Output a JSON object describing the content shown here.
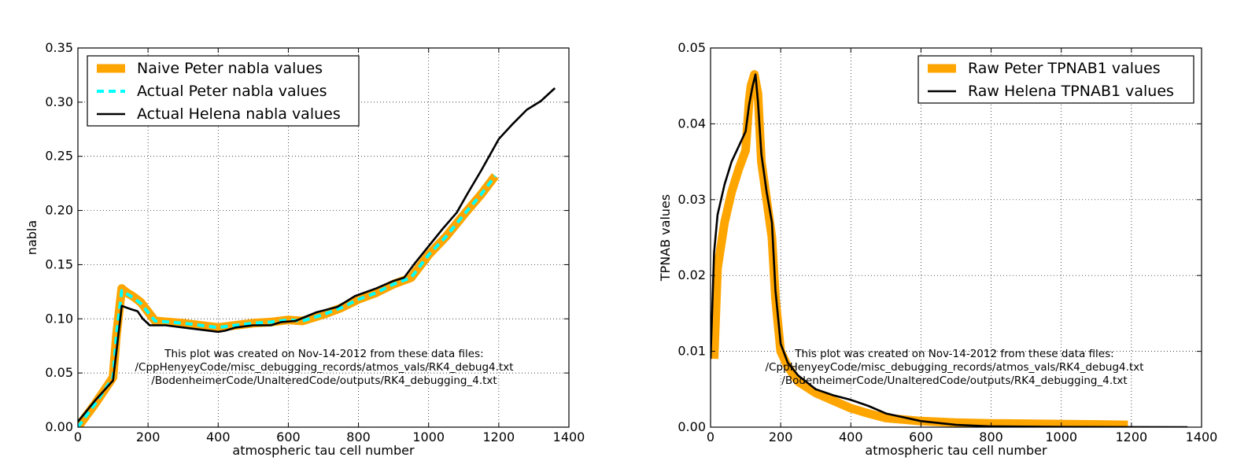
{
  "chart_data": [
    {
      "type": "line",
      "title": "",
      "xlabel": "atmospheric tau cell number",
      "ylabel": "nabla",
      "xlim": [
        0,
        1400
      ],
      "ylim": [
        0,
        0.35
      ],
      "xticks": [
        0,
        200,
        400,
        600,
        800,
        1000,
        1200,
        1400
      ],
      "xtick_labels": [
        "0",
        "200",
        "400",
        "600",
        "800",
        "1000",
        "1200",
        "1400"
      ],
      "yticks": [
        0,
        0.05,
        0.1,
        0.15,
        0.2,
        0.25,
        0.3,
        0.35
      ],
      "ytick_labels": [
        "0.00",
        "0.05",
        "0.10",
        "0.15",
        "0.20",
        "0.25",
        "0.30",
        "0.35"
      ],
      "grid": true,
      "legend_position": "top-left",
      "annotation": [
        "This plot was created on Nov-14-2012 from these data files:",
        "/CppHenyeyCode/misc_debugging_records/atmos_vals/RK4_debug4.txt",
        "/BodenheimerCode/UnalteredCode/outputs/RK4_debugging_4.txt"
      ],
      "series": [
        {
          "name": "Naive Peter nabla values",
          "color": "#FFA500",
          "style": "thick",
          "x": [
            0,
            50,
            100,
            110,
            125,
            140,
            160,
            180,
            220,
            300,
            400,
            450,
            500,
            550,
            600,
            640,
            700,
            750,
            800,
            850,
            900,
            950,
            1000,
            1050,
            1100,
            1150,
            1190
          ],
          "y": [
            0.0,
            0.022,
            0.046,
            0.085,
            0.128,
            0.124,
            0.12,
            0.115,
            0.098,
            0.096,
            0.092,
            0.094,
            0.096,
            0.097,
            0.099,
            0.098,
            0.104,
            0.11,
            0.118,
            0.124,
            0.132,
            0.138,
            0.159,
            0.176,
            0.196,
            0.215,
            0.232
          ]
        },
        {
          "name": "Actual Peter nabla values",
          "color": "#00FFFF",
          "style": "dashed",
          "x": [
            0,
            50,
            100,
            110,
            125,
            140,
            160,
            180,
            220,
            300,
            400,
            450,
            500,
            550,
            600,
            640,
            700,
            750,
            800,
            850,
            900,
            950,
            1000,
            1050,
            1100,
            1150,
            1190
          ],
          "y": [
            0.0,
            0.022,
            0.046,
            0.085,
            0.126,
            0.123,
            0.119,
            0.114,
            0.098,
            0.096,
            0.092,
            0.094,
            0.096,
            0.097,
            0.099,
            0.098,
            0.104,
            0.11,
            0.118,
            0.124,
            0.132,
            0.138,
            0.159,
            0.176,
            0.196,
            0.215,
            0.232
          ]
        },
        {
          "name": "Actual Helena nabla values",
          "color": "#000000",
          "style": "solid",
          "x": [
            0,
            50,
            100,
            110,
            125,
            150,
            170,
            185,
            205,
            250,
            300,
            350,
            400,
            420,
            450,
            500,
            550,
            580,
            620,
            680,
            740,
            790,
            850,
            900,
            930,
            960,
            1000,
            1040,
            1080,
            1110,
            1150,
            1200,
            1240,
            1280,
            1320,
            1360
          ],
          "y": [
            0.005,
            0.025,
            0.043,
            0.07,
            0.112,
            0.109,
            0.107,
            0.1,
            0.094,
            0.094,
            0.092,
            0.09,
            0.088,
            0.089,
            0.092,
            0.094,
            0.094,
            0.097,
            0.098,
            0.106,
            0.111,
            0.121,
            0.128,
            0.135,
            0.138,
            0.151,
            0.167,
            0.183,
            0.198,
            0.215,
            0.237,
            0.266,
            0.28,
            0.293,
            0.301,
            0.313
          ]
        }
      ]
    },
    {
      "type": "line",
      "title": "",
      "xlabel": "atmospheric tau cell number",
      "ylabel": "TPNAB values",
      "xlim": [
        0,
        1400
      ],
      "ylim": [
        0,
        0.05
      ],
      "xticks": [
        0,
        200,
        400,
        600,
        800,
        1000,
        1200,
        1400
      ],
      "xtick_labels": [
        "0",
        "200",
        "400",
        "600",
        "800",
        "1000",
        "1200",
        "1400"
      ],
      "yticks": [
        0,
        0.01,
        0.02,
        0.03,
        0.04,
        0.05
      ],
      "ytick_labels": [
        "0.00",
        "0.01",
        "0.02",
        "0.03",
        "0.04",
        "0.05"
      ],
      "grid": true,
      "legend_position": "top-right",
      "annotation": [
        "This plot was created on Nov-14-2012 from these data files:",
        "/CppHenyeyCode/misc_debugging_records/atmos_vals/RK4_debug4.txt",
        "/BodenheimerCode/UnalteredCode/outputs/RK4_debugging_4.txt"
      ],
      "series": [
        {
          "name": "Raw Peter TPNAB1 values",
          "color": "#FFA500",
          "style": "thick",
          "x": [
            10,
            20,
            40,
            60,
            80,
            100,
            110,
            115,
            125,
            135,
            145,
            160,
            175,
            185,
            200,
            220,
            250,
            300,
            350,
            400,
            450,
            500,
            600,
            700,
            800,
            1000,
            1190
          ],
          "y": [
            0.009,
            0.021,
            0.027,
            0.031,
            0.034,
            0.0365,
            0.043,
            0.045,
            0.0465,
            0.044,
            0.035,
            0.03,
            0.025,
            0.017,
            0.01,
            0.008,
            0.006,
            0.0045,
            0.0035,
            0.0025,
            0.0018,
            0.0012,
            0.0008,
            0.0006,
            0.0005,
            0.0004,
            0.0003
          ]
        },
        {
          "name": "Raw Helena TPNAB1 values",
          "color": "#000000",
          "style": "solid",
          "x": [
            0,
            10,
            20,
            40,
            60,
            80,
            100,
            110,
            120,
            128,
            135,
            145,
            160,
            175,
            185,
            200,
            220,
            250,
            300,
            350,
            400,
            450,
            500,
            600,
            700,
            800,
            1000,
            1200,
            1360
          ],
          "y": [
            0.009,
            0.023,
            0.028,
            0.032,
            0.035,
            0.037,
            0.039,
            0.0425,
            0.045,
            0.0465,
            0.043,
            0.036,
            0.031,
            0.027,
            0.018,
            0.011,
            0.0085,
            0.0068,
            0.005,
            0.0042,
            0.0036,
            0.0028,
            0.0018,
            0.0008,
            0.0003,
            0.0001,
            3e-05,
            1e-05,
            0.0
          ]
        }
      ]
    }
  ]
}
